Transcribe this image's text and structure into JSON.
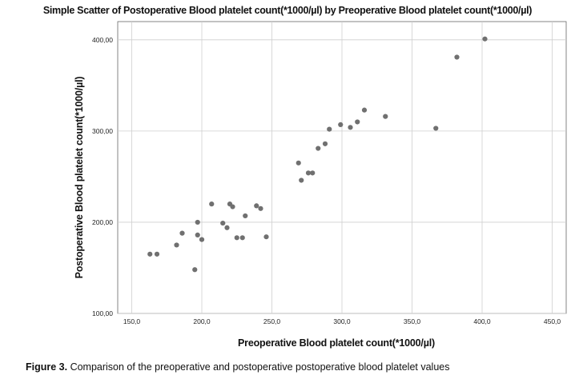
{
  "chart_data": {
    "type": "scatter",
    "title": "Simple Scatter of Postoperative Blood platelet count(*1000/µl) by Preoperative Blood platelet count(*1000/µl)",
    "xlabel": "Preoperative Blood platelet count(*1000/µl)",
    "ylabel": "Postoperative Blood platelet count(*1000/µl)",
    "xlim": [
      140,
      460
    ],
    "ylim": [
      100,
      420
    ],
    "x_ticks": [
      150,
      200,
      250,
      300,
      350,
      400,
      450
    ],
    "x_tick_labels": [
      "150,0",
      "200,0",
      "250,0",
      "300,0",
      "350,0",
      "400,0",
      "450,0"
    ],
    "y_ticks": [
      100,
      200,
      300,
      400
    ],
    "y_tick_labels": [
      "100,00",
      "200,00",
      "300,00",
      "400,00"
    ],
    "grid": true,
    "point_color": "#707070",
    "points": [
      {
        "x": 163,
        "y": 165
      },
      {
        "x": 168,
        "y": 165
      },
      {
        "x": 182,
        "y": 175
      },
      {
        "x": 186,
        "y": 188
      },
      {
        "x": 195,
        "y": 148
      },
      {
        "x": 197,
        "y": 200
      },
      {
        "x": 197,
        "y": 186
      },
      {
        "x": 200,
        "y": 181
      },
      {
        "x": 207,
        "y": 220
      },
      {
        "x": 215,
        "y": 199
      },
      {
        "x": 218,
        "y": 194
      },
      {
        "x": 220,
        "y": 220
      },
      {
        "x": 222,
        "y": 217
      },
      {
        "x": 225,
        "y": 183
      },
      {
        "x": 229,
        "y": 183
      },
      {
        "x": 231,
        "y": 207
      },
      {
        "x": 239,
        "y": 218
      },
      {
        "x": 242,
        "y": 215
      },
      {
        "x": 246,
        "y": 184
      },
      {
        "x": 269,
        "y": 265
      },
      {
        "x": 271,
        "y": 246
      },
      {
        "x": 276,
        "y": 254
      },
      {
        "x": 279,
        "y": 254
      },
      {
        "x": 283,
        "y": 281
      },
      {
        "x": 288,
        "y": 286
      },
      {
        "x": 291,
        "y": 302
      },
      {
        "x": 299,
        "y": 307
      },
      {
        "x": 306,
        "y": 304
      },
      {
        "x": 311,
        "y": 310
      },
      {
        "x": 316,
        "y": 323
      },
      {
        "x": 331,
        "y": 316
      },
      {
        "x": 367,
        "y": 303
      },
      {
        "x": 382,
        "y": 381
      },
      {
        "x": 402,
        "y": 401
      }
    ]
  },
  "caption": {
    "label": "Figure 3.",
    "text": " Comparison of the preoperative and postoperative postoperative blood platelet values"
  }
}
